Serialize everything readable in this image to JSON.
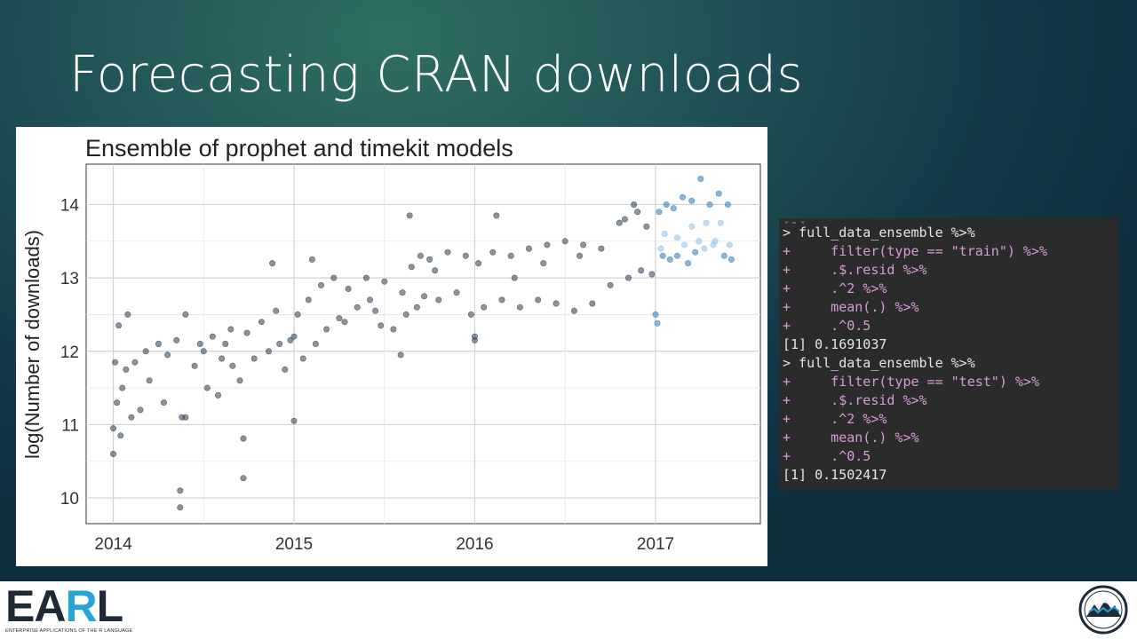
{
  "slide": {
    "title": "Forecasting CRAN downloads"
  },
  "chart_data": {
    "type": "scatter",
    "title": "Ensemble of prophet and timekit models",
    "xlabel": "",
    "ylabel": "log(Number of downloads)",
    "x_ticks": [
      "2014",
      "2015",
      "2016",
      "2017"
    ],
    "y_ticks": [
      10,
      11,
      12,
      13,
      14
    ],
    "xlim": [
      2013.85,
      2017.58
    ],
    "ylim": [
      9.65,
      14.55
    ],
    "grid": true,
    "legend": "none",
    "colors": {
      "train": "#3d4c5c",
      "test": "#3f86c0",
      "test_light": "#9cc4e4"
    },
    "series": [
      {
        "type_value": "train",
        "points": [
          [
            2014.0,
            10.6
          ],
          [
            2014.0,
            10.95
          ],
          [
            2014.01,
            11.85
          ],
          [
            2014.02,
            11.3
          ],
          [
            2014.03,
            12.35
          ],
          [
            2014.04,
            10.85
          ],
          [
            2014.05,
            11.5
          ],
          [
            2014.07,
            11.75
          ],
          [
            2014.08,
            12.5
          ],
          [
            2014.1,
            11.1
          ],
          [
            2014.12,
            11.85
          ],
          [
            2014.15,
            11.2
          ],
          [
            2014.18,
            12.0
          ],
          [
            2014.2,
            11.6
          ],
          [
            2014.25,
            12.1
          ],
          [
            2014.28,
            11.3
          ],
          [
            2014.3,
            11.95
          ],
          [
            2014.35,
            12.15
          ],
          [
            2014.38,
            11.1
          ],
          [
            2014.4,
            12.5
          ],
          [
            2014.45,
            11.8
          ],
          [
            2014.48,
            12.1
          ],
          [
            2014.52,
            11.5
          ],
          [
            2014.55,
            12.2
          ],
          [
            2014.6,
            11.9
          ],
          [
            2014.65,
            12.3
          ],
          [
            2014.7,
            11.6
          ],
          [
            2014.74,
            12.25
          ],
          [
            2014.78,
            11.9
          ],
          [
            2014.82,
            12.4
          ],
          [
            2014.86,
            12.0
          ],
          [
            2014.9,
            12.55
          ],
          [
            2014.95,
            11.75
          ],
          [
            2014.98,
            12.15
          ],
          [
            2014.37,
            10.1
          ],
          [
            2014.37,
            9.87
          ],
          [
            2014.72,
            10.81
          ],
          [
            2014.72,
            10.27
          ],
          [
            2014.4,
            11.1
          ],
          [
            2014.88,
            13.2
          ],
          [
            2014.5,
            12.0
          ],
          [
            2014.58,
            11.4
          ],
          [
            2014.62,
            12.1
          ],
          [
            2014.66,
            11.8
          ],
          [
            2014.92,
            12.1
          ],
          [
            2015.0,
            12.2
          ],
          [
            2015.0,
            11.05
          ],
          [
            2015.02,
            12.5
          ],
          [
            2015.05,
            11.9
          ],
          [
            2015.08,
            12.7
          ],
          [
            2015.12,
            12.1
          ],
          [
            2015.15,
            12.9
          ],
          [
            2015.18,
            12.3
          ],
          [
            2015.22,
            13.0
          ],
          [
            2015.25,
            12.45
          ],
          [
            2015.3,
            12.85
          ],
          [
            2015.35,
            12.6
          ],
          [
            2015.4,
            13.0
          ],
          [
            2015.45,
            12.55
          ],
          [
            2015.5,
            12.95
          ],
          [
            2015.55,
            12.3
          ],
          [
            2015.6,
            12.8
          ],
          [
            2015.62,
            12.5
          ],
          [
            2015.65,
            13.15
          ],
          [
            2015.68,
            12.6
          ],
          [
            2015.7,
            13.3
          ],
          [
            2015.72,
            12.75
          ],
          [
            2015.75,
            13.25
          ],
          [
            2015.8,
            12.7
          ],
          [
            2015.85,
            13.35
          ],
          [
            2015.9,
            12.8
          ],
          [
            2015.95,
            13.3
          ],
          [
            2015.98,
            12.5
          ],
          [
            2015.64,
            13.85
          ],
          [
            2015.59,
            11.95
          ],
          [
            2015.1,
            13.25
          ],
          [
            2015.28,
            12.4
          ],
          [
            2015.42,
            12.7
          ],
          [
            2015.48,
            12.35
          ],
          [
            2015.78,
            13.1
          ],
          [
            2016.0,
            12.2
          ],
          [
            2016.0,
            12.15
          ],
          [
            2016.02,
            13.2
          ],
          [
            2016.05,
            12.6
          ],
          [
            2016.1,
            13.35
          ],
          [
            2016.15,
            12.7
          ],
          [
            2016.2,
            13.3
          ],
          [
            2016.25,
            12.6
          ],
          [
            2016.3,
            13.4
          ],
          [
            2016.35,
            12.7
          ],
          [
            2016.4,
            13.45
          ],
          [
            2016.45,
            12.65
          ],
          [
            2016.5,
            13.5
          ],
          [
            2016.55,
            12.55
          ],
          [
            2016.6,
            13.45
          ],
          [
            2016.65,
            12.65
          ],
          [
            2016.7,
            13.4
          ],
          [
            2016.75,
            12.9
          ],
          [
            2016.8,
            13.75
          ],
          [
            2016.85,
            13.0
          ],
          [
            2016.9,
            13.9
          ],
          [
            2016.92,
            13.1
          ],
          [
            2016.95,
            13.7
          ],
          [
            2016.98,
            13.05
          ],
          [
            2016.12,
            13.85
          ],
          [
            2016.83,
            13.8
          ],
          [
            2016.88,
            14.0
          ],
          [
            2016.58,
            13.3
          ],
          [
            2016.22,
            13.0
          ],
          [
            2016.38,
            13.2
          ]
        ]
      },
      {
        "type_value": "test",
        "points": [
          [
            2017.0,
            12.5
          ],
          [
            2017.01,
            12.38
          ],
          [
            2017.02,
            13.9
          ],
          [
            2017.04,
            13.3
          ],
          [
            2017.06,
            14.0
          ],
          [
            2017.08,
            13.25
          ],
          [
            2017.1,
            13.95
          ],
          [
            2017.12,
            13.3
          ],
          [
            2017.15,
            14.1
          ],
          [
            2017.18,
            13.2
          ],
          [
            2017.2,
            14.05
          ],
          [
            2017.22,
            13.35
          ],
          [
            2017.25,
            14.35
          ],
          [
            2017.27,
            13.4
          ],
          [
            2017.3,
            14.0
          ],
          [
            2017.32,
            13.45
          ],
          [
            2017.35,
            14.15
          ],
          [
            2017.38,
            13.3
          ],
          [
            2017.4,
            14.0
          ],
          [
            2017.42,
            13.25
          ],
          [
            2017.05,
            13.6
          ],
          [
            2017.12,
            13.55
          ],
          [
            2017.2,
            13.7
          ],
          [
            2017.28,
            13.75
          ],
          [
            2017.36,
            13.75
          ],
          [
            2017.03,
            13.4
          ],
          [
            2017.16,
            13.45
          ],
          [
            2017.24,
            13.5
          ],
          [
            2017.33,
            13.5
          ],
          [
            2017.41,
            13.45
          ]
        ]
      }
    ]
  },
  "console": {
    "lines": [
      {
        "kind": "prompt",
        "text": "> full_data_ensemble %>%"
      },
      {
        "kind": "code",
        "text": "+     filter(type == \"train\") %>%"
      },
      {
        "kind": "code",
        "text": "+     .$.resid %>%"
      },
      {
        "kind": "code",
        "text": "+     .^2 %>%"
      },
      {
        "kind": "code",
        "text": "+     mean(.) %>%"
      },
      {
        "kind": "code",
        "text": "+     .^0.5"
      },
      {
        "kind": "out",
        "text": "[1] 0.1691037"
      },
      {
        "kind": "prompt",
        "text": "> full_data_ensemble %>%"
      },
      {
        "kind": "code",
        "text": "+     filter(type == \"test\") %>%"
      },
      {
        "kind": "code",
        "text": "+     .$.resid %>%"
      },
      {
        "kind": "code",
        "text": "+     .^2 %>%"
      },
      {
        "kind": "code",
        "text": "+     mean(.) %>%"
      },
      {
        "kind": "code",
        "text": "+     .^0.5"
      },
      {
        "kind": "out",
        "text": "[1] 0.1502417"
      }
    ]
  },
  "footer": {
    "earl_logo": {
      "letters_dark_1": "EA",
      "letters_blue": "R",
      "letters_dark_2": "L",
      "tagline": "ENTERPRISE APPLICATIONS OF THE R LANGUAGE"
    },
    "badge_icon": "mountain-badge-icon"
  }
}
